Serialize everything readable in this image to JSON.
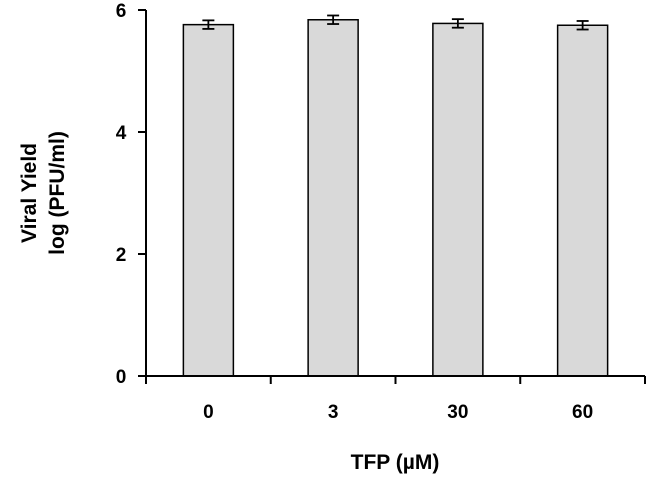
{
  "chart_data": {
    "type": "bar",
    "categories": [
      "0",
      "3",
      "30",
      "60"
    ],
    "values": [
      5.76,
      5.84,
      5.78,
      5.75
    ],
    "error": [
      0.07,
      0.07,
      0.07,
      0.07
    ],
    "xlabel": "TFP (µM)",
    "ylabel": [
      "Viral Yield",
      "log (PFU/ml)"
    ],
    "ylim": [
      0,
      6
    ],
    "yticks": [
      "0",
      "2",
      "4",
      "6"
    ],
    "grid": false,
    "legend": "none",
    "colors": {
      "bar_fill": "#d9d9d9",
      "bar_stroke": "#000000",
      "axis": "#000000"
    }
  }
}
